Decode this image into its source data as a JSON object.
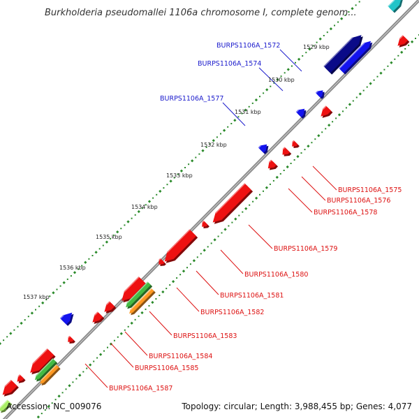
{
  "title": "Burkholderia pseudomallei 1106a chromosome I, complete genom...",
  "footer": {
    "accession": "Accession: NC_009076",
    "summary": "Topology: circular; Length: 3,988,455 bp; Genes: 4,077"
  },
  "colors": {
    "backbone": "#8a8a8a",
    "forward_gene": "#1414ee",
    "reverse_gene": "#ee1111",
    "dark_gene": "#0a0a88",
    "teal_gene": "#22c4c8",
    "green_gene": "#44bb44",
    "orange_gene": "#ff9922",
    "tick_green": "#2a8a2a"
  },
  "scale_ticks": [
    "1529 kbp",
    "1530 kbp",
    "1531 kbp",
    "1532 kbp",
    "1533 kbp",
    "1534 kbp",
    "1535 kbp",
    "1536 kbp",
    "1537 kbp"
  ],
  "gene_labels": {
    "forward": [
      "BURPS1106A_1572",
      "BURPS1106A_1574",
      "BURPS1106A_1577"
    ],
    "reverse": [
      "BURPS1106A_1575",
      "BURPS1106A_1576",
      "BURPS1106A_1578",
      "BURPS1106A_1579",
      "BURPS1106A_1580",
      "BURPS1106A_1581",
      "BURPS1106A_1582",
      "BURPS1106A_1583",
      "BURPS1106A_1584",
      "BURPS1106A_1585",
      "BURPS1106A_1587"
    ]
  }
}
